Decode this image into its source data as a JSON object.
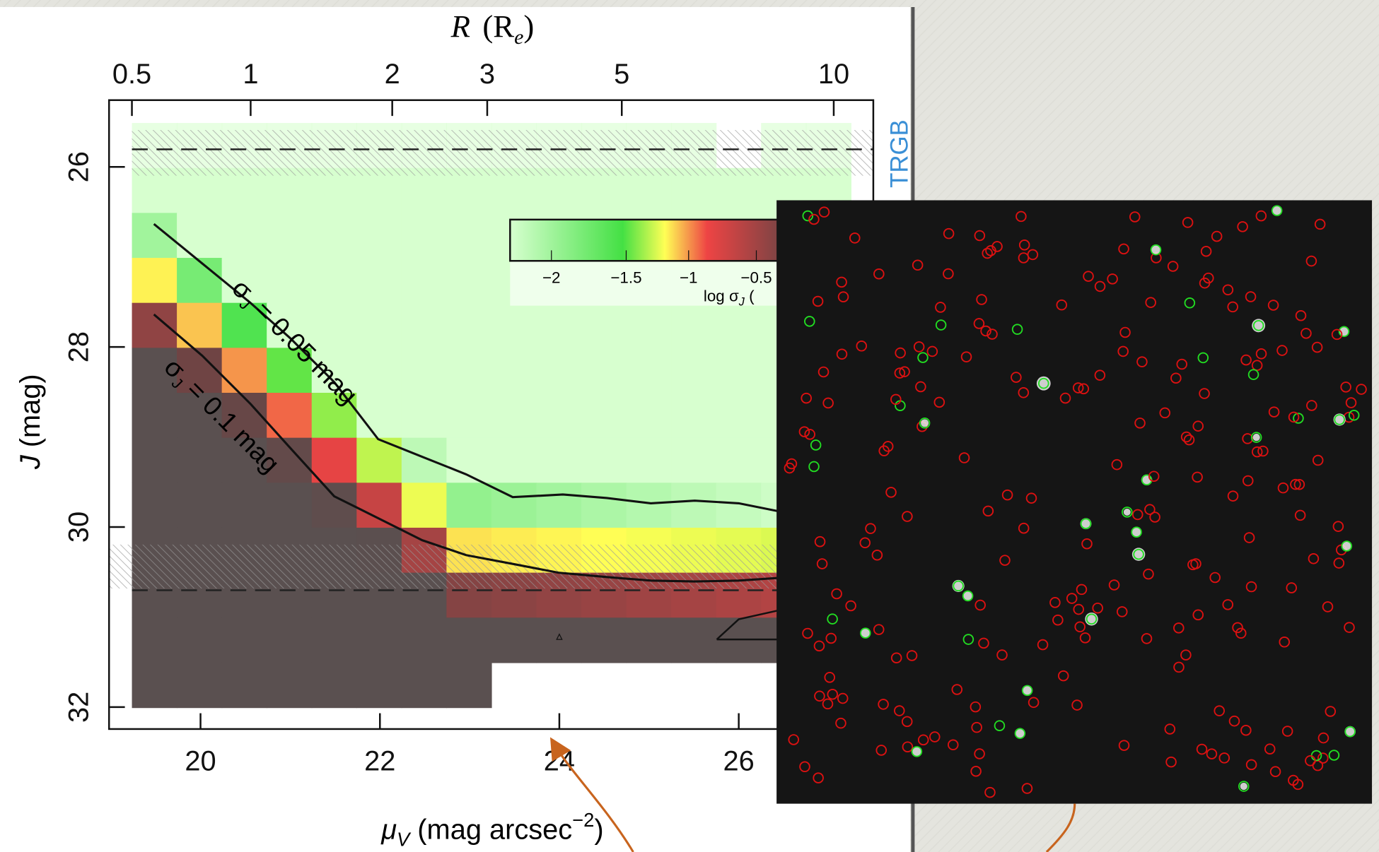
{
  "figure": {
    "top_axis": {
      "title": "R",
      "title_sub": "(R",
      "title_sub_e": "e",
      "title_close": ")",
      "ticks": [
        "0.5",
        "1",
        "2",
        "3",
        "5",
        "10"
      ]
    },
    "bottom_axis": {
      "title": "μ",
      "title_sub": "V",
      "title_rest": " (mag arcsec",
      "title_sup": "−2",
      "title_close": ")",
      "ticks": [
        "20",
        "22",
        "24",
        "26"
      ]
    },
    "left_axis": {
      "title": "J",
      "title_rest": " (mag)",
      "ticks": [
        "26",
        "28",
        "30",
        "32"
      ]
    },
    "band_label": "TRGB",
    "colorbar": {
      "ticks": [
        "−2",
        "−1.5",
        "−1",
        "−0.5"
      ],
      "label": "log σ",
      "label_sub": "J",
      "label_rest": " ("
    },
    "annotations": [
      {
        "sigma": "σ",
        "sub": "J",
        "text": " = 0.05 mag"
      },
      {
        "sigma": "σ",
        "sub": "J",
        "text": " = 0.1 mag"
      }
    ]
  }
}
